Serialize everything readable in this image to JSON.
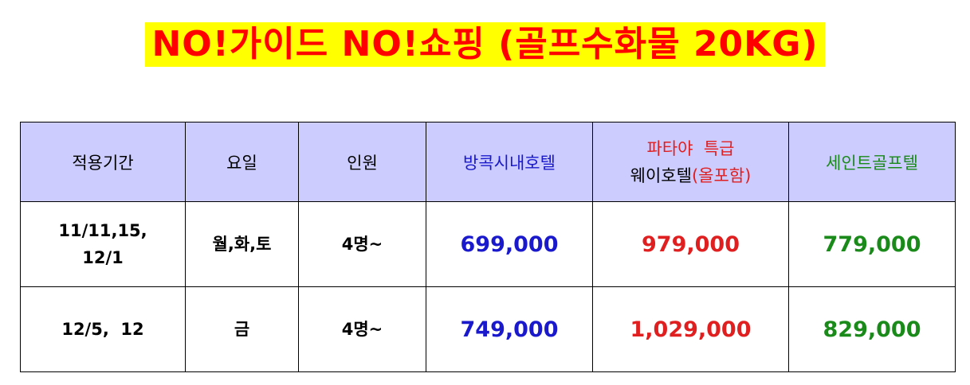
{
  "title": "NO!가이드  NO!쇼핑  (골프수화물  20KG)",
  "table": {
    "headers": {
      "period": "적용기간",
      "day": "요일",
      "people": "인원",
      "bangkok": "방콕시내호텔",
      "pattaya_line1": "파타야  특급",
      "pattaya_line2_a": "웨이호텔",
      "pattaya_line2_b": "(올포함)",
      "saint": "세인트골프텔"
    },
    "rows": [
      {
        "period_line1": "11/11,15,",
        "period_line2": "12/1",
        "day": "월,화,토",
        "people": "4명~",
        "bangkok": "699,000",
        "pattaya": "979,000",
        "saint": "779,000"
      },
      {
        "period_line1": "12/5,  12",
        "day": "금",
        "people": "4명~",
        "bangkok": "749,000",
        "pattaya": "1,029,000",
        "saint": "829,000"
      }
    ]
  },
  "colors": {
    "title_text": "#ff0000",
    "title_highlight": "#ffff00",
    "header_bg": "#ccccff",
    "blue": "#1a1acc",
    "red": "#e02020",
    "green": "#1a8a1a"
  }
}
